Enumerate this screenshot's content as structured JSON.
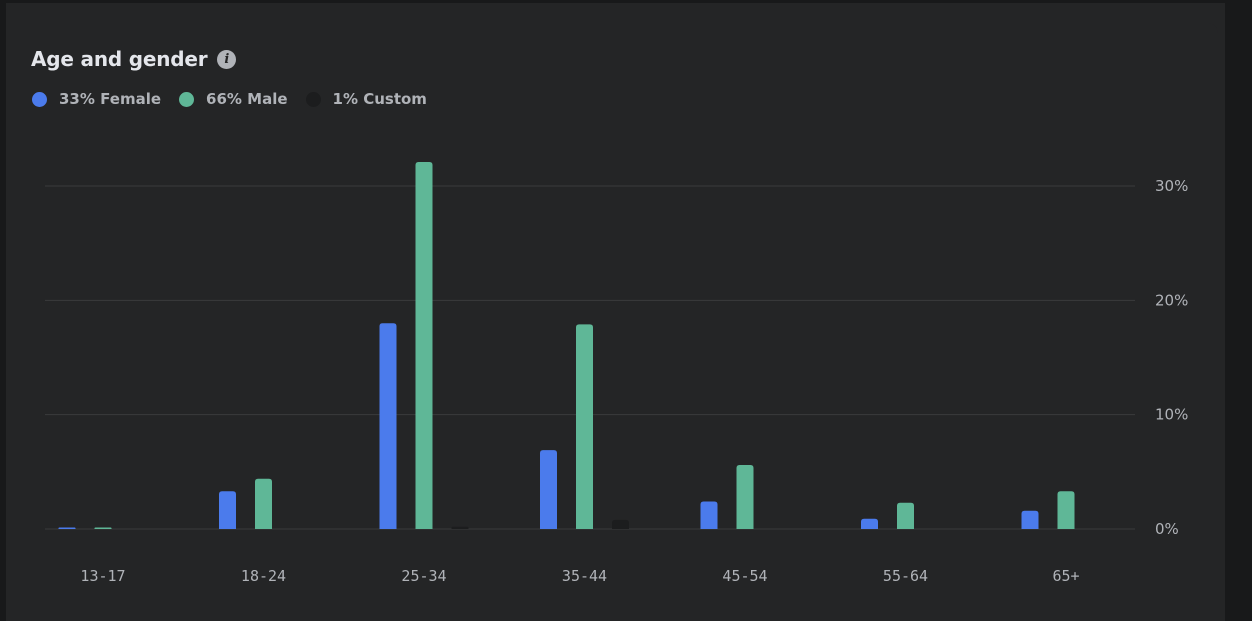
{
  "chart_data": {
    "type": "bar",
    "title": "Age and gender",
    "categories": [
      "13-17",
      "18-24",
      "25-34",
      "35-44",
      "45-54",
      "55-64",
      "65+"
    ],
    "series": [
      {
        "name": "33% Female",
        "color": "#4b7bec",
        "values": [
          0.1,
          3.3,
          18.0,
          6.9,
          2.4,
          0.9,
          1.6
        ]
      },
      {
        "name": "66% Male",
        "color": "#5fb797",
        "values": [
          0.1,
          4.4,
          32.1,
          17.9,
          5.6,
          2.3,
          3.3
        ]
      },
      {
        "name": "1% Custom",
        "color": "#1c1d1e",
        "values": [
          0.0,
          0.0,
          0.2,
          0.8,
          0.0,
          0.0,
          0.0
        ]
      }
    ],
    "yticks": [
      0,
      10,
      20,
      30
    ],
    "ytick_labels": [
      "0%",
      "10%",
      "20%",
      "30%"
    ],
    "ylim": [
      0,
      32.1
    ],
    "grid": true,
    "legend_position": "top-left",
    "xlabel": "",
    "ylabel": ""
  },
  "info_icon": "info-icon",
  "colors": {
    "background": "#242526",
    "grid": "#3a3b3c",
    "text": "#b0b3b8"
  }
}
